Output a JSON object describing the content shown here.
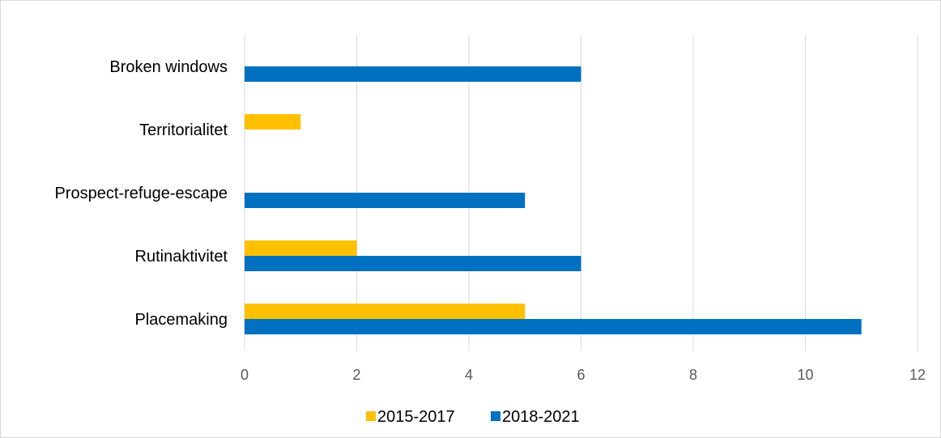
{
  "chart_data": {
    "type": "bar",
    "orientation": "horizontal",
    "categories": [
      "Broken windows",
      "Territorialitet",
      "Prospect-refuge-escape",
      "Rutinaktivitet",
      "Placemaking"
    ],
    "series": [
      {
        "name": "2015-2017",
        "color": "#FFC000",
        "values": [
          0,
          1,
          0,
          2,
          5
        ]
      },
      {
        "name": "2018-2021",
        "color": "#0070C0",
        "values": [
          6,
          0,
          5,
          6,
          11
        ]
      }
    ],
    "x_ticks": [
      "0",
      "2",
      "4",
      "6",
      "8",
      "10",
      "12"
    ],
    "xlim": [
      0,
      12
    ],
    "grid": true,
    "grid_color": "#d9d9d9",
    "legend_position": "bottom"
  }
}
